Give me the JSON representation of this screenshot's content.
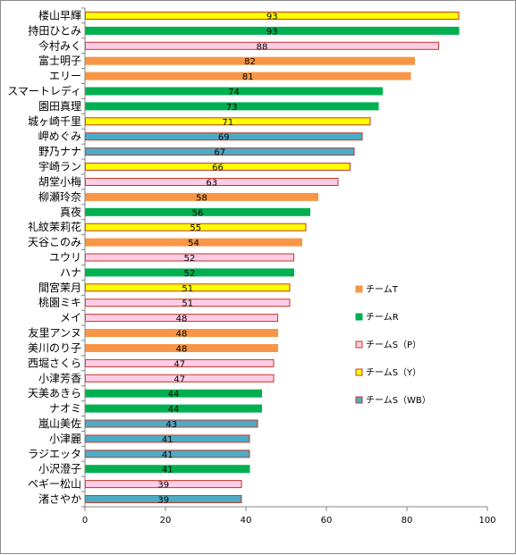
{
  "chart_data": {
    "type": "bar",
    "orientation": "horizontal",
    "xlim": [
      0,
      100
    ],
    "x_ticks": [
      0,
      20,
      40,
      60,
      80,
      100
    ],
    "grid": false,
    "legend_position": "right",
    "series": [
      {
        "name": "チームT",
        "color": "#f79646",
        "border": "#f79646"
      },
      {
        "name": "チームR",
        "color": "#00b050",
        "border": "#00b050"
      },
      {
        "name": "チームS（P）",
        "color": "#ffcce6",
        "border": "#c0392b"
      },
      {
        "name": "チームS（Y）",
        "color": "#ffff00",
        "border": "#c0392b"
      },
      {
        "name": "チームS（WB）",
        "color": "#4bacc6",
        "border": "#c0392b"
      }
    ],
    "bars": [
      {
        "label": "楼山早輝",
        "value": 93,
        "team": 3
      },
      {
        "label": "持田ひとみ",
        "value": 93,
        "team": 1
      },
      {
        "label": "今村みく",
        "value": 88,
        "team": 2
      },
      {
        "label": "富士明子",
        "value": 82,
        "team": 0
      },
      {
        "label": "エリー",
        "value": 81,
        "team": 0
      },
      {
        "label": "スマートレディ",
        "value": 74,
        "team": 1
      },
      {
        "label": "園田真理",
        "value": 73,
        "team": 1
      },
      {
        "label": "城ヶ崎千里",
        "value": 71,
        "team": 3
      },
      {
        "label": "岬めぐみ",
        "value": 69,
        "team": 4
      },
      {
        "label": "野乃ナナ",
        "value": 67,
        "team": 4
      },
      {
        "label": "宇崎ラン",
        "value": 66,
        "team": 3
      },
      {
        "label": "胡堂小梅",
        "value": 63,
        "team": 2
      },
      {
        "label": "柳瀬玲奈",
        "value": 58,
        "team": 0
      },
      {
        "label": "真夜",
        "value": 56,
        "team": 1
      },
      {
        "label": "礼紋茉莉花",
        "value": 55,
        "team": 3
      },
      {
        "label": "天谷このみ",
        "value": 54,
        "team": 0
      },
      {
        "label": "ユウリ",
        "value": 52,
        "team": 2
      },
      {
        "label": "ハナ",
        "value": 52,
        "team": 1
      },
      {
        "label": "間宮茉月",
        "value": 51,
        "team": 3
      },
      {
        "label": "桃園ミキ",
        "value": 51,
        "team": 2
      },
      {
        "label": "メイ",
        "value": 48,
        "team": 2
      },
      {
        "label": "友里アンヌ",
        "value": 48,
        "team": 0
      },
      {
        "label": "美川のり子",
        "value": 48,
        "team": 0
      },
      {
        "label": "西堀さくら",
        "value": 47,
        "team": 2
      },
      {
        "label": "小津芳香",
        "value": 47,
        "team": 2
      },
      {
        "label": "天美あきら",
        "value": 44,
        "team": 1
      },
      {
        "label": "ナオミ",
        "value": 44,
        "team": 1
      },
      {
        "label": "嵐山美佐",
        "value": 43,
        "team": 4
      },
      {
        "label": "小津麗",
        "value": 41,
        "team": 4
      },
      {
        "label": "ラジエッタ",
        "value": 41,
        "team": 4
      },
      {
        "label": "小沢澄子",
        "value": 41,
        "team": 1
      },
      {
        "label": "ペギー松山",
        "value": 39,
        "team": 2
      },
      {
        "label": "渚さやか",
        "value": 39,
        "team": 4
      }
    ]
  }
}
